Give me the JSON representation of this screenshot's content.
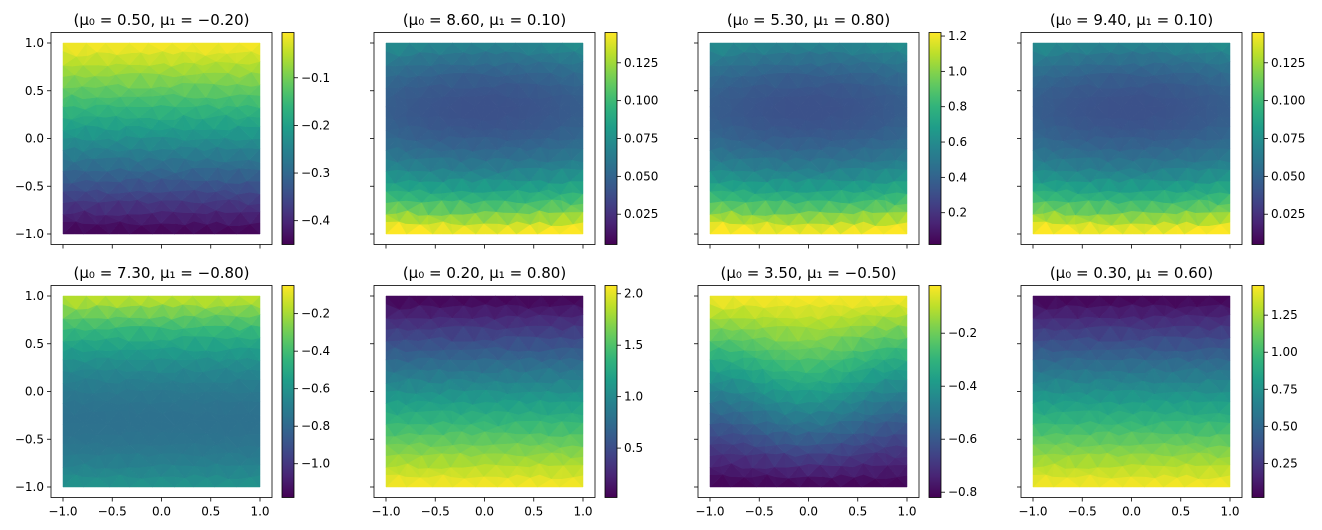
{
  "chart_data": {
    "type": "heatmap",
    "layout": "2x4 grid of triangulated (tripcolor) field plots, each with its own colorbar",
    "colormap": "viridis",
    "x_ticks": [
      "−1.0",
      "−0.5",
      "0.0",
      "0.5",
      "1.0"
    ],
    "y_ticks": [
      "1.0",
      "0.5",
      "0.0",
      "−0.5",
      "−1.0"
    ],
    "axis_range": {
      "x": [
        -1.1,
        1.1
      ],
      "y": [
        -1.1,
        1.1
      ]
    },
    "domain": {
      "x": [
        -1,
        1
      ],
      "y": [
        -1,
        1
      ]
    },
    "panels": [
      {
        "title": "(μ₀ = 0.50, μ₁ = −0.20)",
        "field": "increasing-y",
        "range": [
          -0.45,
          -0.005
        ],
        "colorbar_ticks": [
          {
            "value": -0.1,
            "label": "−0.1"
          },
          {
            "value": -0.2,
            "label": "−0.2"
          },
          {
            "value": -0.3,
            "label": "−0.3"
          },
          {
            "value": -0.4,
            "label": "−0.4"
          }
        ]
      },
      {
        "title": "(μ₀ = 8.60, μ₁ = 0.10)",
        "field": "center-bottom",
        "range": [
          0.005,
          0.145
        ],
        "colorbar_ticks": [
          {
            "value": 0.125,
            "label": "0.125"
          },
          {
            "value": 0.1,
            "label": "0.100"
          },
          {
            "value": 0.075,
            "label": "0.075"
          },
          {
            "value": 0.05,
            "label": "0.050"
          },
          {
            "value": 0.025,
            "label": "0.025"
          }
        ]
      },
      {
        "title": "(μ₀ = 5.30, μ₁ = 0.80)",
        "field": "center-bottom",
        "range": [
          0.02,
          1.22
        ],
        "colorbar_ticks": [
          {
            "value": 1.2,
            "label": "1.2"
          },
          {
            "value": 1.0,
            "label": "1.0"
          },
          {
            "value": 0.8,
            "label": "0.8"
          },
          {
            "value": 0.6,
            "label": "0.6"
          },
          {
            "value": 0.4,
            "label": "0.4"
          },
          {
            "value": 0.2,
            "label": "0.2"
          }
        ]
      },
      {
        "title": "(μ₀ = 9.40, μ₁ = 0.10)",
        "field": "center-bottom",
        "range": [
          0.005,
          0.145
        ],
        "colorbar_ticks": [
          {
            "value": 0.125,
            "label": "0.125"
          },
          {
            "value": 0.1,
            "label": "0.100"
          },
          {
            "value": 0.075,
            "label": "0.075"
          },
          {
            "value": 0.05,
            "label": "0.050"
          },
          {
            "value": 0.025,
            "label": "0.025"
          }
        ]
      },
      {
        "title": "(μ₀ = 7.30, μ₁ = −0.80)",
        "field": "center-top",
        "range": [
          -1.18,
          -0.05
        ],
        "colorbar_ticks": [
          {
            "value": -0.2,
            "label": "−0.2"
          },
          {
            "value": -0.4,
            "label": "−0.4"
          },
          {
            "value": -0.6,
            "label": "−0.6"
          },
          {
            "value": -0.8,
            "label": "−0.8"
          },
          {
            "value": -1.0,
            "label": "−1.0"
          }
        ]
      },
      {
        "title": "(μ₀ = 0.20, μ₁ = 0.80)",
        "field": "decreasing-y",
        "range": [
          0.02,
          2.08
        ],
        "colorbar_ticks": [
          {
            "value": 2.0,
            "label": "2.0"
          },
          {
            "value": 1.5,
            "label": "1.5"
          },
          {
            "value": 1.0,
            "label": "1.0"
          },
          {
            "value": 0.5,
            "label": "0.5"
          }
        ]
      },
      {
        "title": "(μ₀ = 3.50, μ₁ = −0.50)",
        "field": "increasing-y-bulge",
        "range": [
          -0.82,
          -0.02
        ],
        "colorbar_ticks": [
          {
            "value": -0.2,
            "label": "−0.2"
          },
          {
            "value": -0.4,
            "label": "−0.4"
          },
          {
            "value": -0.6,
            "label": "−0.6"
          },
          {
            "value": -0.8,
            "label": "−0.8"
          }
        ]
      },
      {
        "title": "(μ₀ = 0.30, μ₁ = 0.60)",
        "field": "decreasing-y",
        "range": [
          0.02,
          1.45
        ],
        "colorbar_ticks": [
          {
            "value": 1.25,
            "label": "1.25"
          },
          {
            "value": 1.0,
            "label": "1.00"
          },
          {
            "value": 0.75,
            "label": "0.75"
          },
          {
            "value": 0.5,
            "label": "0.50"
          },
          {
            "value": 0.25,
            "label": "0.25"
          }
        ]
      }
    ]
  }
}
